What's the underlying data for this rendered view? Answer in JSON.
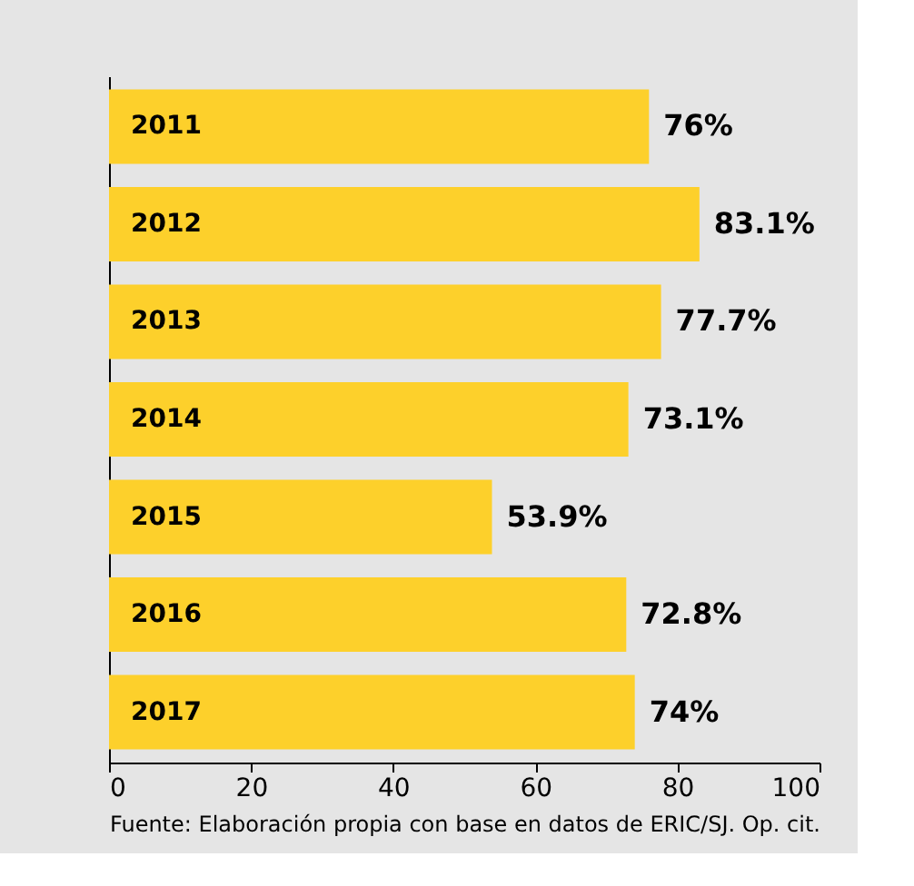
{
  "chart_data": {
    "type": "bar",
    "orientation": "horizontal",
    "categories": [
      "2011",
      "2012",
      "2013",
      "2014",
      "2015",
      "2016",
      "2017"
    ],
    "values": [
      76,
      83.1,
      77.7,
      73.1,
      53.9,
      72.8,
      74
    ],
    "value_labels": [
      "76%",
      "83.1%",
      "77.7%",
      "73.1%",
      "53.9%",
      "72.8%",
      "74%"
    ],
    "color": "#fdd02b",
    "xlim": [
      0,
      100
    ],
    "xticks": [
      0,
      20,
      40,
      60,
      80,
      100
    ],
    "grid": false,
    "annotations": [
      "Fuente: Elaboración propia con base en datos de ERIC/SJ. Op. cit."
    ]
  }
}
